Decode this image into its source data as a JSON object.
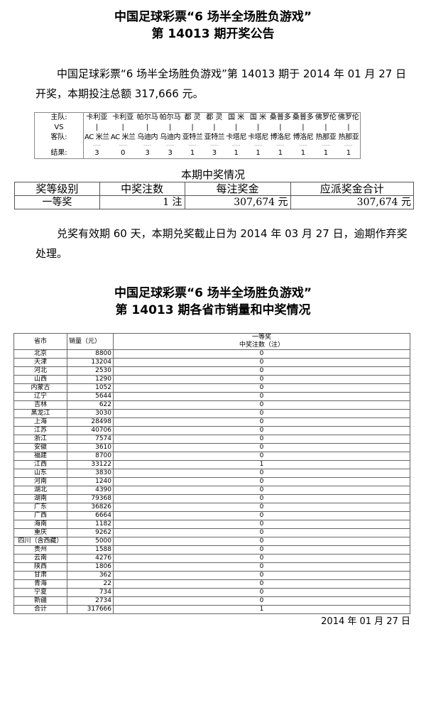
{
  "title1": "中国足球彩票“6 场半全场胜负游戏”",
  "title2": "第 14013 期开奖公告",
  "intro": "中国足球彩票“6 场半全场胜负游戏”第 14013 期于 2014 年 01 月 27 日开奖，本期投注总额 317,666 元。",
  "labels": {
    "home": "主队:",
    "vs": "VS",
    "away": "客队:",
    "result": "结果:"
  },
  "matches": [
    {
      "home": "卡利亚",
      "away": "AC 米兰",
      "result": "3"
    },
    {
      "home": "卡利亚",
      "away": "AC 米兰",
      "result": "0"
    },
    {
      "home": "帕尔马",
      "away": "乌迪内",
      "result": "3"
    },
    {
      "home": "帕尔马",
      "away": "乌迪内",
      "result": "3"
    },
    {
      "home": "都 灵",
      "away": "亚特兰",
      "result": "1"
    },
    {
      "home": "都 灵",
      "away": "亚特兰",
      "result": "3"
    },
    {
      "home": "国 米",
      "away": "卡塔尼",
      "result": "1"
    },
    {
      "home": "国 米",
      "away": "卡塔尼",
      "result": "1"
    },
    {
      "home": "桑普多",
      "away": "博洛尼",
      "result": "1"
    },
    {
      "home": "桑普多",
      "away": "博洛尼",
      "result": "1"
    },
    {
      "home": "佛罗伦",
      "away": "热那亚",
      "result": "1"
    },
    {
      "home": "佛罗伦",
      "away": "热那亚",
      "result": "1"
    }
  ],
  "prize_title": "本期中奖情况",
  "prize_headers": [
    "奖等级别",
    "中奖注数",
    "每注奖金",
    "应派奖金合计"
  ],
  "prize_row": [
    "一等奖",
    "1 注",
    "307,674 元",
    "307,674 元"
  ],
  "notice": "兑奖有效期 60 天，本期兑奖截止日为 2014 年 03 月 27 日，逾期作弃奖处理。",
  "title3": "中国足球彩票“6 场半全场胜负游戏”",
  "title4": "第 14013 期各省市销量和中奖情况",
  "prov_headers": {
    "province": "省市",
    "sales": "销量（元）",
    "prize_line1": "一等奖",
    "prize_line2": "中奖注数（注）"
  },
  "provinces": [
    [
      "北京",
      "8800",
      "0"
    ],
    [
      "天津",
      "13204",
      "0"
    ],
    [
      "河北",
      "2530",
      "0"
    ],
    [
      "山西",
      "1290",
      "0"
    ],
    [
      "内蒙古",
      "1052",
      "0"
    ],
    [
      "辽宁",
      "5644",
      "0"
    ],
    [
      "吉林",
      "622",
      "0"
    ],
    [
      "黑龙江",
      "3030",
      "0"
    ],
    [
      "上海",
      "28498",
      "0"
    ],
    [
      "江苏",
      "40706",
      "0"
    ],
    [
      "浙江",
      "7574",
      "0"
    ],
    [
      "安徽",
      "3610",
      "0"
    ],
    [
      "福建",
      "8700",
      "0"
    ],
    [
      "江西",
      "33122",
      "1"
    ],
    [
      "山东",
      "3830",
      "0"
    ],
    [
      "河南",
      "1240",
      "0"
    ],
    [
      "湖北",
      "4390",
      "0"
    ],
    [
      "湖南",
      "79368",
      "0"
    ],
    [
      "广东",
      "36826",
      "0"
    ],
    [
      "广西",
      "6664",
      "0"
    ],
    [
      "海南",
      "1182",
      "0"
    ],
    [
      "重庆",
      "9262",
      "0"
    ],
    [
      "四川（含西藏）",
      "5000",
      "0"
    ],
    [
      "贵州",
      "1588",
      "0"
    ],
    [
      "云南",
      "4276",
      "0"
    ],
    [
      "陕西",
      "1806",
      "0"
    ],
    [
      "甘肃",
      "362",
      "0"
    ],
    [
      "青海",
      "22",
      "0"
    ],
    [
      "宁夏",
      "734",
      "0"
    ],
    [
      "新疆",
      "2734",
      "0"
    ],
    [
      "合计",
      "317666",
      "1"
    ]
  ],
  "date": "2014 年 01 月 27 日"
}
